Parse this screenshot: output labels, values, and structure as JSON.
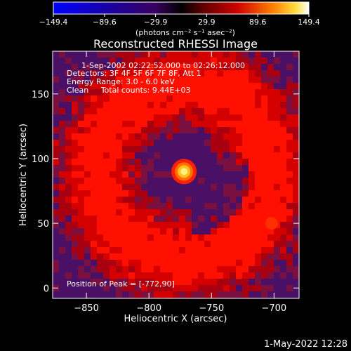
{
  "chart_data": {
    "type": "heatmap",
    "title": "Reconstructed RHESSI Image",
    "xlabel": "Heliocentric X (arcsec)",
    "ylabel": "Heliocentric Y (arcsec)",
    "xlim": [
      -877,
      -680
    ],
    "ylim": [
      -8,
      183
    ],
    "x_ticks": [
      -850,
      -800,
      -750,
      -700
    ],
    "x_tick_labels": [
      "−850",
      "−800",
      "−750",
      "−700"
    ],
    "y_ticks": [
      0,
      50,
      100,
      150
    ],
    "y_tick_labels": [
      "0",
      "50",
      "100",
      "150"
    ],
    "colorbar": {
      "min": -149.4,
      "max": 149.4,
      "tick_values": [
        -149.4,
        -89.6,
        -29.9,
        29.9,
        89.6,
        149.4
      ],
      "tick_labels": [
        "−149.4",
        "−89.6",
        "−29.9",
        "29.9",
        "89.6",
        "149.4"
      ],
      "unit_label": "(photons cm⁻² s⁻¹ asec⁻²)"
    },
    "annotations": {
      "time_range": "1-Sep-2002 02:22:52.000 to 02:26:12.000",
      "detectors": "Detectors: 3F 4F 5F 6F 7F 8F, Att 1",
      "energy": "Energy Range: 3.0 - 6.0 keV",
      "clean": "Clean     Total counts: 9.44E+03",
      "peak": "Position of Peak = [-772,90]"
    },
    "peak": {
      "x": -772,
      "y": 90
    },
    "grid": false
  },
  "footer_date": "1-May-2022 12:28"
}
